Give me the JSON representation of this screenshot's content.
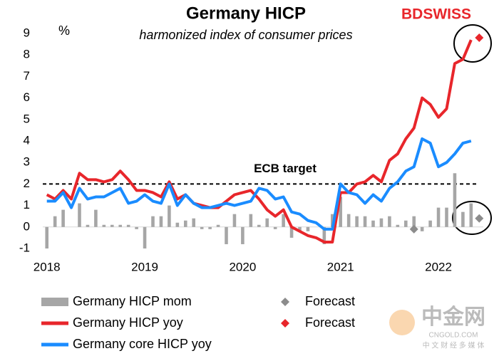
{
  "chart_data": {
    "type": "line",
    "title": "Germany HICP",
    "subtitle": "harmonized index of consumer prices",
    "y_label": "%",
    "logo": "BDSWISS",
    "watermark": {
      "name": "中金网",
      "site": "CNGOLD.COM",
      "tagline": "中 文 财 经 多 媒 体"
    },
    "target": 2,
    "target_label": "ECB target",
    "categories": [
      "2018",
      null,
      null,
      null,
      null,
      null,
      null,
      null,
      null,
      null,
      null,
      null,
      "2019",
      null,
      null,
      null,
      null,
      null,
      null,
      null,
      null,
      null,
      null,
      null,
      "2020",
      null,
      null,
      null,
      null,
      null,
      null,
      null,
      null,
      null,
      null,
      null,
      "2021",
      null,
      null,
      null,
      null,
      null,
      null,
      null,
      null,
      null,
      null,
      null,
      "2022",
      null,
      null,
      null,
      null,
      null
    ],
    "ylim": [
      -1,
      9
    ],
    "yticks": [
      -1,
      0,
      1,
      2,
      3,
      4,
      5,
      6,
      7,
      8,
      9
    ],
    "series": [
      {
        "name": "Germany HICP mom",
        "style": "bar",
        "color": "#a6a6a6",
        "values": [
          -1.0,
          0.5,
          0.8,
          0.0,
          1.1,
          0.1,
          0.8,
          0.1,
          0.1,
          0.1,
          0.1,
          -0.1,
          -1.0,
          0.5,
          0.5,
          1.0,
          0.2,
          0.3,
          0.4,
          -0.1,
          -0.1,
          0.1,
          -0.8,
          0.6,
          -0.8,
          0.6,
          0.1,
          0.4,
          -0.1,
          0.6,
          -0.5,
          -0.2,
          -0.2,
          0.0,
          -0.8,
          0.6,
          1.4,
          0.6,
          0.5,
          0.5,
          0.3,
          0.4,
          0.5,
          0.1,
          0.3,
          0.5,
          -0.2,
          0.3,
          0.9,
          0.9,
          2.5,
          0.7,
          1.1,
          null
        ]
      },
      {
        "name": "Forecast",
        "style": "diamond",
        "color": "#8c8c8c",
        "values": [
          null,
          null,
          null,
          null,
          null,
          null,
          null,
          null,
          null,
          null,
          null,
          null,
          null,
          null,
          null,
          null,
          null,
          null,
          null,
          null,
          null,
          null,
          null,
          null,
          null,
          null,
          null,
          null,
          null,
          null,
          null,
          null,
          null,
          null,
          null,
          null,
          null,
          null,
          null,
          null,
          null,
          null,
          null,
          null,
          null,
          -0.1,
          null,
          null,
          null,
          null,
          null,
          null,
          null,
          0.4
        ]
      },
      {
        "name": "Germany HICP yoy",
        "style": "line",
        "color": "#e8262b",
        "values": [
          1.5,
          1.3,
          1.7,
          1.3,
          2.5,
          2.2,
          2.2,
          2.1,
          2.2,
          2.6,
          2.2,
          1.7,
          1.7,
          1.6,
          1.4,
          2.1,
          1.3,
          1.5,
          1.1,
          1.0,
          0.9,
          0.9,
          1.2,
          1.5,
          1.6,
          1.7,
          1.3,
          0.8,
          0.5,
          0.8,
          0.0,
          -0.2,
          -0.4,
          -0.5,
          -0.7,
          -0.7,
          1.6,
          1.6,
          2.0,
          2.1,
          2.4,
          2.1,
          3.1,
          3.4,
          4.1,
          4.6,
          6.0,
          5.7,
          5.1,
          5.5,
          7.6,
          7.8,
          8.7,
          null
        ]
      },
      {
        "name": "Forecast",
        "style": "diamond",
        "color": "#e8262b",
        "values": [
          null,
          null,
          null,
          null,
          null,
          null,
          null,
          null,
          null,
          null,
          null,
          null,
          null,
          null,
          null,
          null,
          null,
          null,
          null,
          null,
          null,
          null,
          null,
          null,
          null,
          null,
          null,
          null,
          null,
          null,
          null,
          null,
          null,
          null,
          null,
          null,
          null,
          null,
          null,
          null,
          null,
          null,
          null,
          null,
          null,
          null,
          null,
          null,
          null,
          null,
          null,
          null,
          null,
          8.8
        ]
      },
      {
        "name": "Germany core HICP yoy",
        "style": "line",
        "color": "#1a8cff",
        "values": [
          1.2,
          1.2,
          1.6,
          0.9,
          1.8,
          1.3,
          1.4,
          1.4,
          1.6,
          1.8,
          1.1,
          1.2,
          1.5,
          1.2,
          1.1,
          2.0,
          1.0,
          1.5,
          1.1,
          0.9,
          0.9,
          1.0,
          1.1,
          1.0,
          1.1,
          1.2,
          1.8,
          1.7,
          1.3,
          1.4,
          0.7,
          0.6,
          0.3,
          0.2,
          -0.1,
          -0.1,
          2.0,
          1.6,
          1.5,
          1.1,
          1.5,
          1.2,
          1.8,
          2.1,
          2.6,
          2.8,
          4.1,
          3.9,
          2.8,
          3.0,
          3.4,
          3.9,
          4.0,
          null
        ]
      }
    ]
  }
}
